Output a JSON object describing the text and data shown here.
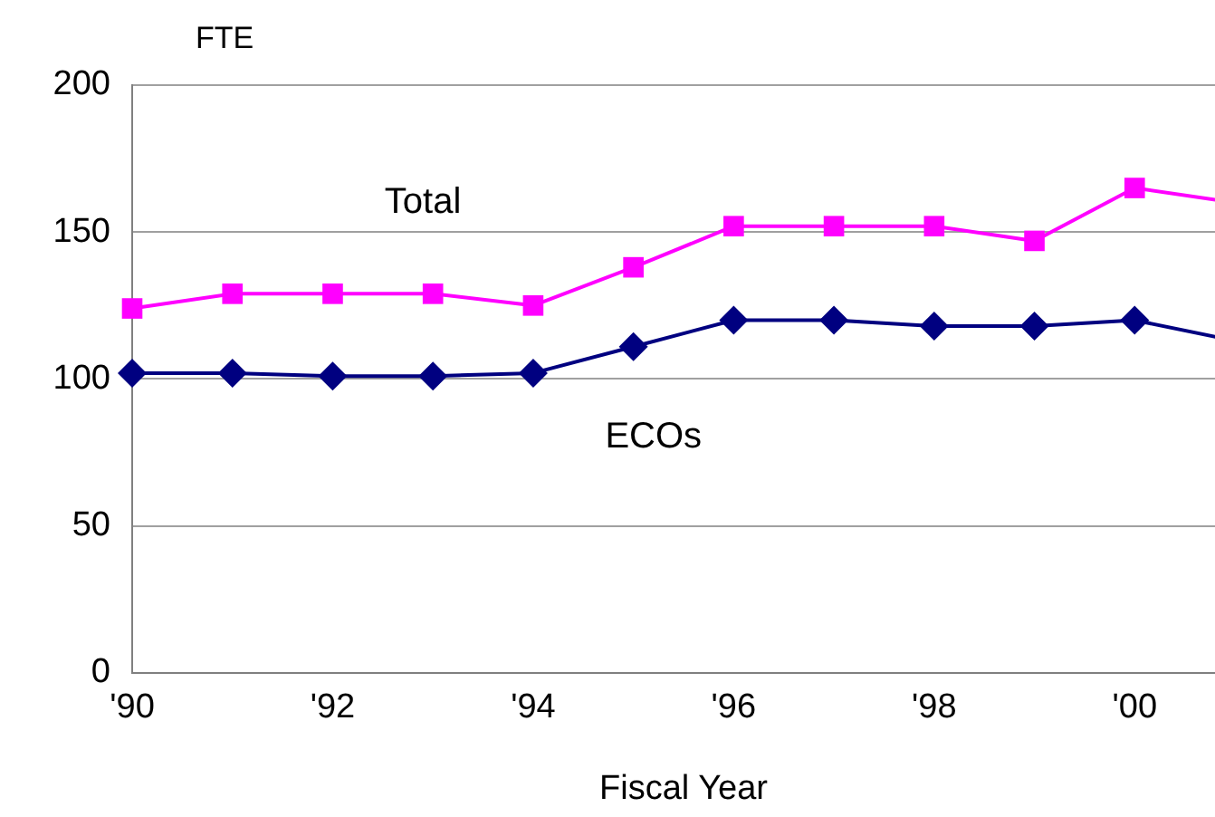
{
  "chart_data": {
    "type": "line",
    "xlabel": "Fiscal Year",
    "ylabel": "FTE",
    "categories": [
      "'90",
      null,
      "'92",
      null,
      "'94",
      null,
      "'96",
      null,
      "'98",
      null,
      "'00",
      null
    ],
    "series": [
      {
        "name": "Total",
        "color": "#ff00ff",
        "marker": "square",
        "values": [
          124,
          129,
          129,
          129,
          125,
          138,
          152,
          152,
          152,
          147,
          165,
          160
        ]
      },
      {
        "name": "ECOs",
        "color": "#000080",
        "marker": "diamond",
        "values": [
          102,
          102,
          101,
          101,
          102,
          111,
          120,
          120,
          118,
          118,
          120,
          113
        ]
      }
    ],
    "ylim": [
      0,
      200
    ],
    "yticks": [
      0,
      50,
      100,
      150,
      200
    ],
    "grid": "y",
    "legend": false
  }
}
